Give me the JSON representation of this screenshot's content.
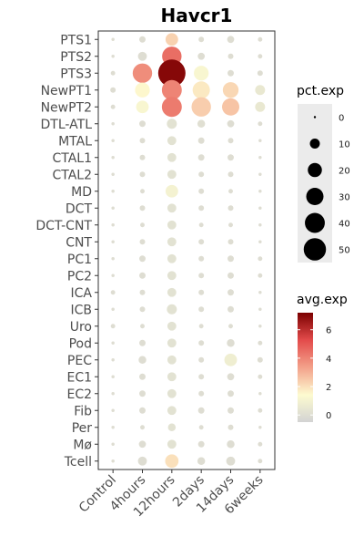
{
  "chart_data": {
    "type": "dotplot",
    "title": "Havcr1",
    "xlabel": "",
    "ylabel": "",
    "categories_x": [
      "Control",
      "4hours",
      "12hours",
      "2days",
      "14days",
      "6weeks"
    ],
    "categories_y": [
      "PTS1",
      "PTS2",
      "PTS3",
      "NewPT1",
      "NewPT2",
      "DTL-ATL",
      "MTAL",
      "CTAL1",
      "CTAL2",
      "MD",
      "DCT",
      "DCT-CNT",
      "CNT",
      "PC1",
      "PC2",
      "ICA",
      "ICB",
      "Uro",
      "Pod",
      "PEC",
      "EC1",
      "EC2",
      "Fib",
      "Per",
      "Mø",
      "Tcell"
    ],
    "pct_exp": [
      [
        1,
        4,
        16,
        3,
        5,
        2
      ],
      [
        1,
        8,
        38,
        5,
        3,
        2
      ],
      [
        2,
        38,
        75,
        22,
        4,
        3
      ],
      [
        3,
        22,
        40,
        30,
        25,
        10
      ],
      [
        2,
        16,
        40,
        38,
        30,
        10
      ],
      [
        1,
        4,
        10,
        6,
        5,
        2
      ],
      [
        1,
        3,
        8,
        4,
        3,
        1
      ],
      [
        1,
        3,
        8,
        4,
        4,
        1
      ],
      [
        1,
        3,
        8,
        3,
        3,
        1
      ],
      [
        1,
        2,
        16,
        3,
        2,
        1
      ],
      [
        1,
        3,
        8,
        3,
        3,
        1
      ],
      [
        1,
        2,
        8,
        2,
        2,
        1
      ],
      [
        1,
        3,
        8,
        3,
        3,
        1
      ],
      [
        1,
        4,
        8,
        3,
        4,
        2
      ],
      [
        1,
        4,
        8,
        3,
        4,
        2
      ],
      [
        2,
        3,
        8,
        3,
        4,
        1
      ],
      [
        1,
        3,
        10,
        3,
        4,
        1
      ],
      [
        2,
        2,
        8,
        2,
        2,
        1
      ],
      [
        1,
        4,
        8,
        3,
        6,
        2
      ],
      [
        1,
        6,
        8,
        3,
        16,
        3
      ],
      [
        1,
        4,
        8,
        3,
        5,
        2
      ],
      [
        1,
        4,
        8,
        3,
        4,
        1
      ],
      [
        1,
        4,
        8,
        4,
        4,
        2
      ],
      [
        1,
        2,
        6,
        2,
        3,
        1
      ],
      [
        1,
        5,
        8,
        4,
        6,
        2
      ],
      [
        1,
        8,
        18,
        6,
        8,
        2
      ]
    ],
    "avg_exp": [
      [
        0,
        0,
        2.3,
        0,
        0,
        0
      ],
      [
        0,
        0,
        4.5,
        0,
        0,
        0
      ],
      [
        0,
        3.8,
        7.0,
        1.2,
        0,
        0
      ],
      [
        0,
        1.5,
        4.0,
        1.8,
        2.2,
        0.5
      ],
      [
        0,
        1.2,
        4.2,
        2.4,
        2.6,
        0.5
      ],
      [
        0,
        0,
        0.2,
        0.1,
        0,
        0
      ],
      [
        0,
        0,
        0.2,
        0,
        0,
        0
      ],
      [
        0,
        0,
        0.2,
        0,
        0,
        0
      ],
      [
        0,
        0,
        0.2,
        0,
        0,
        0
      ],
      [
        0,
        0,
        1.0,
        0,
        0,
        0
      ],
      [
        0,
        0,
        0.2,
        0,
        0,
        0
      ],
      [
        0,
        0,
        0.2,
        0,
        0,
        0
      ],
      [
        0,
        0,
        0.2,
        0,
        0,
        0
      ],
      [
        0,
        0,
        0.2,
        0,
        0,
        0
      ],
      [
        0,
        0,
        0.2,
        0,
        0,
        0
      ],
      [
        0,
        0,
        0.2,
        0,
        0,
        0
      ],
      [
        0,
        0,
        0.2,
        0,
        0,
        0
      ],
      [
        0,
        0,
        0.2,
        0,
        0,
        0
      ],
      [
        0,
        0,
        0.2,
        0,
        0,
        0
      ],
      [
        0,
        0,
        0.2,
        0,
        0.8,
        0
      ],
      [
        0,
        0,
        0.2,
        0,
        0,
        0
      ],
      [
        0,
        0,
        0.2,
        0,
        0,
        0
      ],
      [
        0,
        0,
        0.2,
        0,
        0,
        0
      ],
      [
        0,
        0,
        0.2,
        0,
        0,
        0
      ],
      [
        0,
        0,
        0.2,
        0,
        0,
        0
      ],
      [
        0,
        0,
        2.0,
        0,
        0,
        0
      ]
    ],
    "size_legend": {
      "title": "pct.exp",
      "values": [
        0,
        10,
        20,
        30,
        40,
        50
      ],
      "labels": [
        "0",
        "10",
        "20",
        "30",
        "40",
        "50"
      ]
    },
    "color_legend": {
      "title": "avg.exp",
      "range": [
        -0.5,
        7.2
      ],
      "ticks": [
        0,
        2,
        4,
        6
      ],
      "labels": [
        "0",
        "2",
        "4",
        "6"
      ],
      "colors": [
        "#d3d3d3",
        "#fdfbd0",
        "#f3a18a",
        "#e34b4b",
        "#7b0000"
      ]
    },
    "grid": false,
    "legend_position": "right"
  }
}
